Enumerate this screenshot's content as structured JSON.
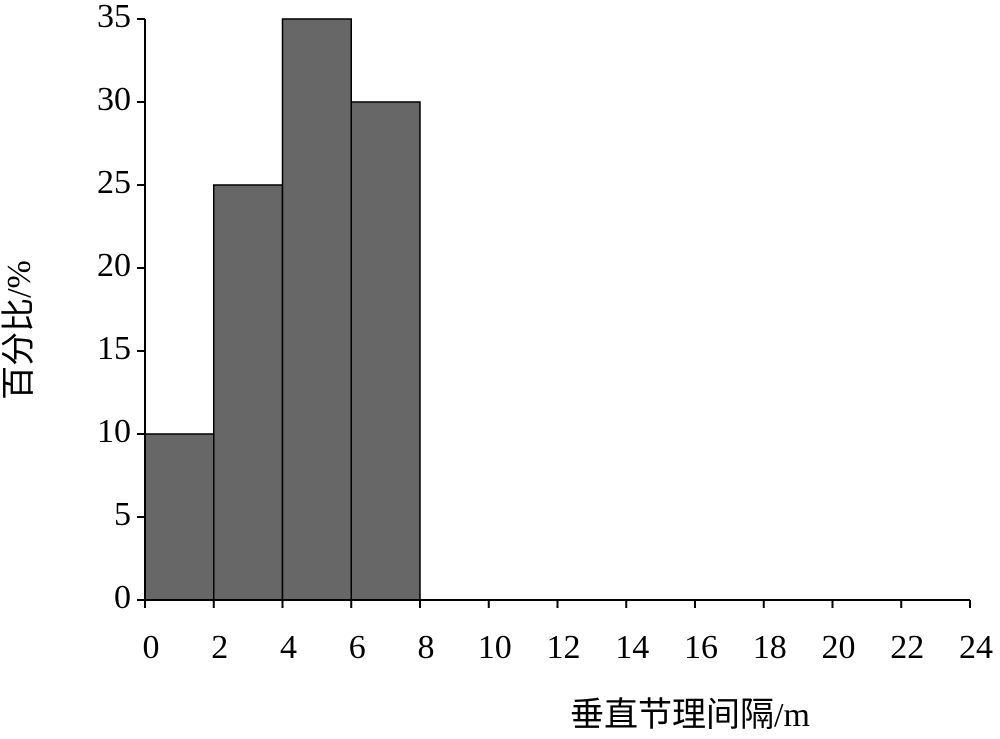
{
  "chart_data": {
    "type": "histogram",
    "bins": [
      0,
      2,
      4,
      6,
      8
    ],
    "values": [
      10,
      25,
      35,
      30
    ],
    "color": "#676767",
    "xlim": [
      0,
      24
    ],
    "xticks": [
      0,
      2,
      4,
      6,
      8,
      10,
      12,
      14,
      16,
      18,
      20,
      22,
      24
    ],
    "ylim": [
      0,
      35
    ],
    "yticks": [
      0,
      5,
      10,
      15,
      20,
      25,
      30,
      35
    ],
    "xlabel": "垂直节理间隔/m",
    "ylabel": "百分比/%"
  }
}
